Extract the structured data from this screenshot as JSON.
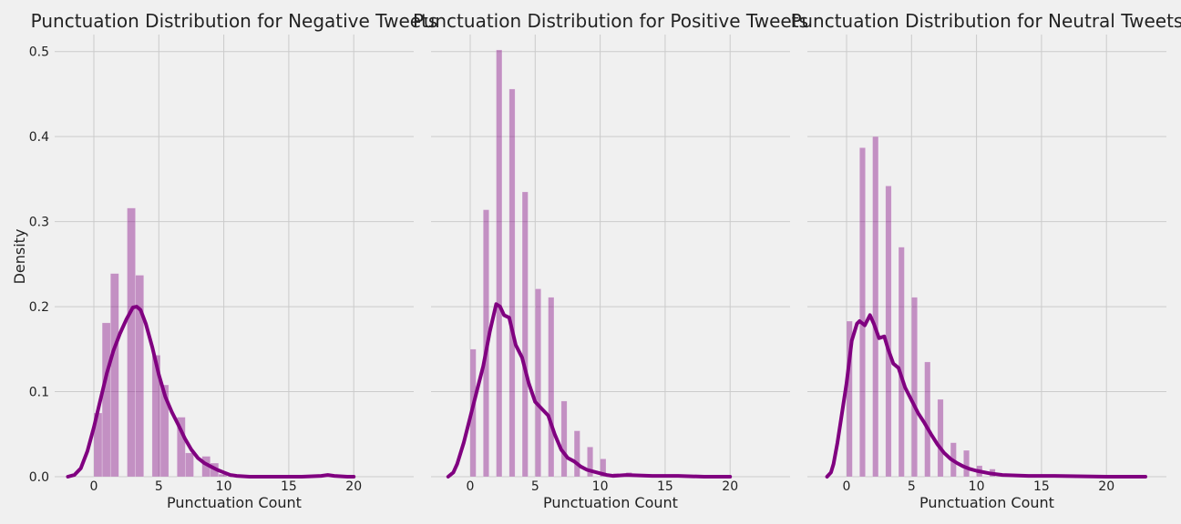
{
  "ylabel": "Density",
  "xlabel": "Punctuation Count",
  "bar_color": "#800080",
  "chart_data": [
    {
      "type": "bar",
      "title": "Punctuation Distribution for Negative Tweets",
      "xlabel": "Punctuation Count",
      "ylabel": "Density",
      "xlim": [
        -2,
        20
      ],
      "ylim": [
        0,
        0.52
      ],
      "xticks": [
        "0",
        "5",
        "10",
        "15",
        "20"
      ],
      "yticks": [
        "0.0",
        "0.1",
        "0.2",
        "0.3",
        "0.4",
        "0.5"
      ],
      "grid": true,
      "histogram": {
        "bin_starts": [
          0,
          0.64,
          1.28,
          1.92,
          2.56,
          3.2,
          3.84,
          4.48,
          5.12,
          5.76,
          6.4,
          7.04,
          7.68,
          8.32,
          8.96,
          9.6
        ],
        "bin_width": 0.64,
        "values": [
          0.075,
          0.181,
          0.239,
          0,
          0.316,
          0.237,
          0,
          0.143,
          0.108,
          0,
          0.07,
          0.028,
          0,
          0.024,
          0.016,
          0.003
        ]
      },
      "kde": {
        "x": [
          -2,
          -1.5,
          -1,
          -0.5,
          0,
          0.5,
          1,
          1.5,
          2,
          2.5,
          3,
          3.3,
          3.6,
          4,
          4.5,
          5,
          5.5,
          6,
          6.5,
          7,
          7.5,
          8,
          8.5,
          9,
          9.5,
          10,
          10.5,
          11,
          12,
          14,
          16,
          17.5,
          18,
          18.5,
          19.5,
          20
        ],
        "y": [
          0,
          0.002,
          0.01,
          0.03,
          0.058,
          0.09,
          0.122,
          0.148,
          0.168,
          0.185,
          0.199,
          0.2,
          0.196,
          0.18,
          0.152,
          0.12,
          0.094,
          0.076,
          0.061,
          0.045,
          0.032,
          0.022,
          0.016,
          0.012,
          0.008,
          0.005,
          0.002,
          0.001,
          0,
          0,
          0,
          0.001,
          0.002,
          0.001,
          0,
          0
        ]
      }
    },
    {
      "type": "bar",
      "title": "Punctuation Distribution for Positive Tweets",
      "xlabel": "Punctuation Count",
      "xlim": [
        -2,
        20
      ],
      "ylim": [
        0,
        0.52
      ],
      "xticks": [
        "0",
        "5",
        "10",
        "15",
        "20"
      ],
      "grid": true,
      "histogram": {
        "bin_starts": [
          0,
          1,
          2,
          3,
          4,
          5,
          6,
          7,
          8,
          9,
          10,
          11,
          12,
          13
        ],
        "bin_width": 0.45,
        "values": [
          0.15,
          0.314,
          0.502,
          0.456,
          0.335,
          0.221,
          0.211,
          0.089,
          0.054,
          0.035,
          0.021,
          0.004,
          0.005,
          0.001
        ]
      },
      "kde": {
        "x": [
          -1.7,
          -1.3,
          -1,
          -0.5,
          0,
          0.5,
          1,
          1.5,
          2,
          2.3,
          2.6,
          3,
          3.5,
          4,
          4.5,
          5,
          5.5,
          6,
          6.5,
          7,
          7.5,
          8,
          8.5,
          9,
          9.5,
          10,
          10.5,
          11,
          12,
          14,
          16,
          18,
          20
        ],
        "y": [
          0,
          0.005,
          0.015,
          0.04,
          0.07,
          0.1,
          0.13,
          0.17,
          0.203,
          0.2,
          0.19,
          0.187,
          0.155,
          0.14,
          0.11,
          0.088,
          0.08,
          0.072,
          0.05,
          0.032,
          0.022,
          0.018,
          0.012,
          0.008,
          0.006,
          0.004,
          0.002,
          0.001,
          0.002,
          0.001,
          0.001,
          0,
          0
        ]
      }
    },
    {
      "type": "bar",
      "title": "Punctuation Distribution for Neutral Tweets",
      "xlabel": "Punctuation Count",
      "xlim": [
        -2,
        23
      ],
      "ylim": [
        0,
        0.52
      ],
      "xticks": [
        "0",
        "5",
        "10",
        "15",
        "20"
      ],
      "grid": true,
      "histogram": {
        "bin_starts": [
          0,
          1,
          2,
          3,
          4,
          5,
          6,
          7,
          8,
          9,
          10,
          11
        ],
        "bin_width": 0.45,
        "values": [
          0.183,
          0.387,
          0.4,
          0.342,
          0.27,
          0.211,
          0.135,
          0.091,
          0.04,
          0.031,
          0.013,
          0.009
        ]
      },
      "kde": {
        "x": [
          -1.5,
          -1.2,
          -1,
          -0.7,
          -0.4,
          0,
          0.4,
          0.8,
          1,
          1.4,
          1.8,
          2.1,
          2.5,
          2.9,
          3.2,
          3.6,
          4,
          4.5,
          5,
          5.5,
          6,
          6.5,
          7,
          7.5,
          8,
          8.5,
          9,
          9.5,
          10,
          11,
          12,
          14,
          16,
          20,
          23
        ],
        "y": [
          0,
          0.005,
          0.015,
          0.04,
          0.07,
          0.11,
          0.16,
          0.18,
          0.183,
          0.178,
          0.19,
          0.18,
          0.163,
          0.165,
          0.15,
          0.133,
          0.128,
          0.105,
          0.09,
          0.075,
          0.063,
          0.05,
          0.038,
          0.028,
          0.021,
          0.016,
          0.012,
          0.009,
          0.007,
          0.004,
          0.002,
          0.001,
          0.001,
          0,
          0
        ]
      }
    }
  ]
}
